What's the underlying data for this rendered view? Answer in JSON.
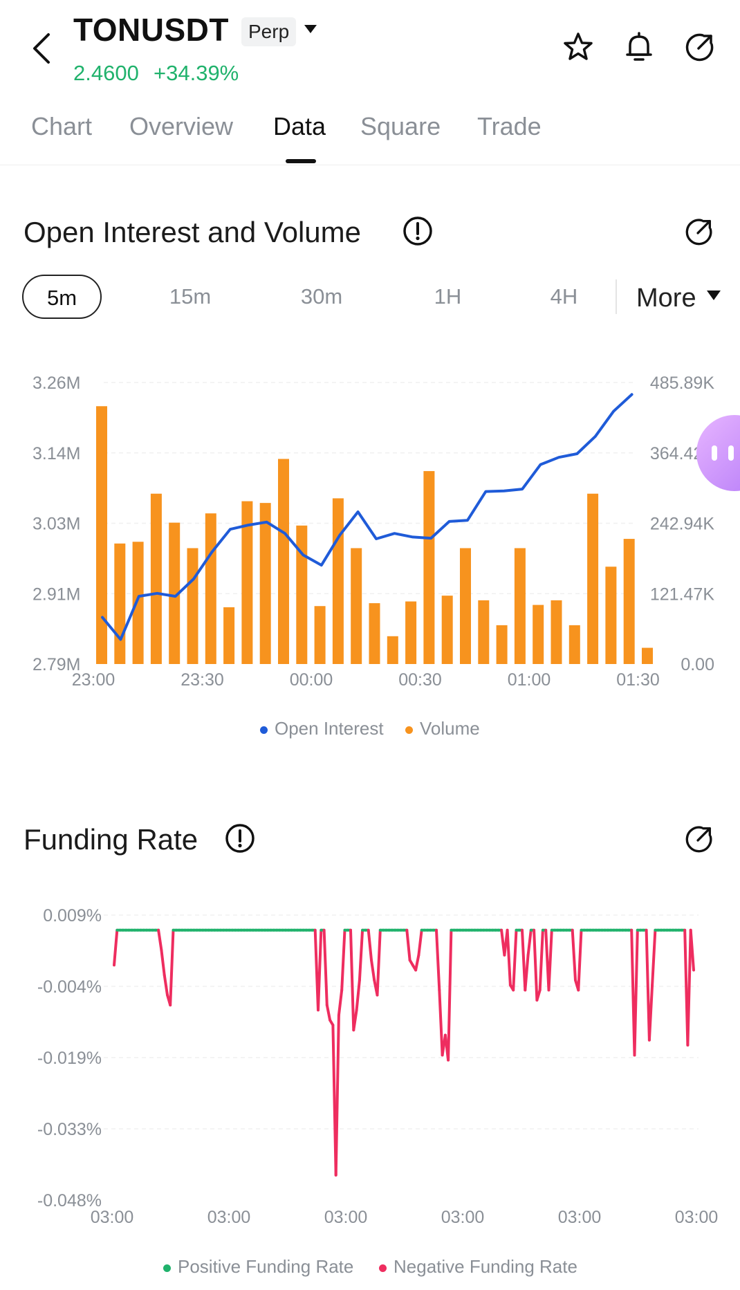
{
  "header": {
    "symbol": "TONUSDT",
    "contract_type": "Perp",
    "price": "2.4600",
    "change": "+34.39%",
    "icons": [
      "back-arrow-icon",
      "star-icon",
      "bell-icon",
      "share-icon"
    ]
  },
  "tabs": [
    {
      "label": "Chart",
      "active": false
    },
    {
      "label": "Overview",
      "active": false
    },
    {
      "label": "Data",
      "active": true
    },
    {
      "label": "Square",
      "active": false
    },
    {
      "label": "Trade",
      "active": false
    }
  ],
  "oi_section": {
    "title": "Open Interest and Volume",
    "intervals": [
      "5m",
      "15m",
      "30m",
      "1H",
      "4H"
    ],
    "selected_interval": "5m",
    "more_label": "More",
    "legend": {
      "open_interest": "Open Interest",
      "volume": "Volume"
    }
  },
  "funding_section": {
    "title": "Funding Rate",
    "legend": {
      "positive": "Positive Funding Rate",
      "negative": "Negative Funding Rate"
    }
  },
  "colors": {
    "positive": "#20b26c",
    "open_interest": "#1f5bd8",
    "volume": "#f7931e",
    "negative": "#ee2d5f"
  },
  "chart_data": [
    {
      "type": "bar+line",
      "title": "Open Interest and Volume",
      "x_ticks": [
        "23:00",
        "23:30",
        "00:00",
        "00:30",
        "01:00",
        "01:30"
      ],
      "left_axis": {
        "ticks": [
          "3.26M",
          "3.14M",
          "3.03M",
          "2.91M",
          "2.79M"
        ],
        "range": [
          2.79,
          3.26
        ],
        "unit": "M"
      },
      "right_axis": {
        "ticks": [
          "485.89K",
          "364.42K",
          "242.94K",
          "121.47K",
          "0.00"
        ],
        "range": [
          0,
          485.89
        ],
        "unit": "K"
      },
      "series": [
        {
          "name": "Volume",
          "kind": "bar",
          "axis": "right",
          "values": [
            445,
            208,
            211,
            294,
            244,
            200,
            260,
            98,
            281,
            278,
            354,
            239,
            100,
            286,
            200,
            105,
            48,
            108,
            333,
            118,
            200,
            110,
            67,
            200,
            102,
            110,
            67,
            294,
            168,
            216,
            28
          ]
        },
        {
          "name": "Open Interest",
          "kind": "line",
          "axis": "left",
          "values": [
            2.868,
            2.831,
            2.903,
            2.908,
            2.903,
            2.932,
            2.977,
            3.015,
            3.022,
            3.027,
            3.008,
            2.972,
            2.955,
            3.005,
            3.044,
            2.999,
            3.008,
            3.002,
            3.0,
            3.028,
            3.03,
            3.078,
            3.079,
            3.082,
            3.123,
            3.135,
            3.141,
            3.17,
            3.212,
            3.24
          ]
        }
      ],
      "legend_position": "bottom"
    },
    {
      "type": "line",
      "title": "Funding Rate",
      "x_ticks": [
        "03:00",
        "03:00",
        "03:00",
        "03:00",
        "03:00",
        "03:00"
      ],
      "y_axis": {
        "ticks": [
          "0.009%",
          "-0.004%",
          "-0.019%",
          "-0.033%",
          "-0.048%"
        ],
        "range": [
          -0.048,
          0.009
        ],
        "unit": "%"
      },
      "series": [
        {
          "name": "Funding Rate",
          "threshold": 0.005,
          "values": [
            -0.001,
            0.006,
            0.006,
            0.006,
            0.006,
            0.006,
            0.006,
            0.006,
            0.006,
            0.006,
            0.006,
            0.006,
            0.006,
            0.006,
            0.006,
            0.006,
            0.002,
            -0.003,
            -0.007,
            -0.009,
            0.006,
            0.006,
            0.006,
            0.006,
            0.006,
            0.006,
            0.006,
            0.006,
            0.006,
            0.006,
            0.006,
            0.006,
            0.006,
            0.006,
            0.006,
            0.006,
            0.006,
            0.006,
            0.006,
            0.006,
            0.006,
            0.006,
            0.006,
            0.006,
            0.006,
            0.006,
            0.006,
            0.006,
            0.006,
            0.006,
            0.006,
            0.006,
            0.006,
            0.006,
            0.006,
            0.006,
            0.006,
            0.006,
            0.006,
            0.006,
            0.006,
            0.006,
            0.006,
            0.006,
            0.006,
            0.006,
            0.006,
            0.006,
            0.006,
            -0.01,
            0.006,
            0.006,
            -0.009,
            -0.012,
            -0.013,
            -0.043,
            -0.011,
            -0.006,
            0.006,
            0.006,
            0.006,
            -0.014,
            -0.01,
            -0.004,
            0.006,
            0.006,
            0.006,
            0.0,
            -0.004,
            -0.007,
            0.006,
            0.006,
            0.006,
            0.006,
            0.006,
            0.006,
            0.006,
            0.006,
            0.006,
            0.006,
            0.0,
            -0.001,
            -0.002,
            0.001,
            0.006,
            0.006,
            0.006,
            0.006,
            0.006,
            0.006,
            -0.006,
            -0.019,
            -0.015,
            -0.02,
            0.006,
            0.006,
            0.006,
            0.006,
            0.006,
            0.006,
            0.006,
            0.006,
            0.006,
            0.006,
            0.006,
            0.006,
            0.006,
            0.006,
            0.006,
            0.006,
            0.006,
            0.006,
            0.001,
            0.006,
            -0.005,
            -0.006,
            0.006,
            0.006,
            0.006,
            -0.006,
            0.001,
            0.006,
            0.006,
            -0.008,
            -0.006,
            0.006,
            0.006,
            -0.006,
            0.006,
            0.006,
            0.006,
            0.006,
            0.006,
            0.006,
            0.006,
            0.006,
            -0.004,
            -0.006,
            0.006,
            0.006,
            0.006,
            0.006,
            0.006,
            0.006,
            0.006,
            0.006,
            0.006,
            0.006,
            0.006,
            0.006,
            0.006,
            0.006,
            0.006,
            0.006,
            0.006,
            0.006,
            -0.019,
            0.006,
            0.006,
            0.006,
            0.006,
            -0.016,
            -0.005,
            0.006,
            0.006,
            0.006,
            0.006,
            0.006,
            0.006,
            0.006,
            0.006,
            0.006,
            0.006,
            0.006,
            -0.017,
            0.006,
            -0.002
          ]
        }
      ],
      "legend_position": "bottom"
    }
  ]
}
